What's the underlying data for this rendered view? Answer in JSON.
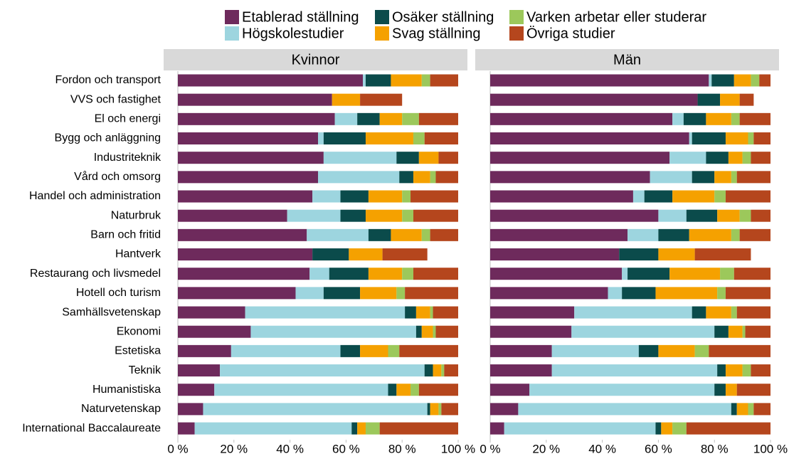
{
  "chart_data": [
    {
      "type": "stacked-barh",
      "title": "Kvinnor",
      "categories": [
        "Fordon och transport",
        "VVS och fastighet",
        "El och energi",
        "Bygg och anläggning",
        "Industriteknik",
        "Vård och omsorg",
        "Handel och administration",
        "Naturbruk",
        "Barn och fritid",
        "Hantverk",
        "Restaurang och livsmedel",
        "Hotell och turism",
        "Samhällsvetenskap",
        "Ekonomi",
        "Estetiska",
        "Teknik",
        "Humanistiska",
        "Naturvetenskap",
        "International Baccalaureate"
      ],
      "series": [
        {
          "name": "Etablerad ställning",
          "color": "#6e2a5c",
          "values": [
            66,
            55,
            56,
            50,
            52,
            50,
            48,
            39,
            46,
            48,
            47,
            42,
            24,
            26,
            19,
            15,
            13,
            9,
            6
          ]
        },
        {
          "name": "Högskolestudier",
          "color": "#9dd5df",
          "values": [
            1,
            0,
            8,
            2,
            26,
            29,
            10,
            19,
            22,
            0,
            7,
            10,
            57,
            59,
            39,
            73,
            62,
            80,
            56
          ]
        },
        {
          "name": "Osäker ställning",
          "color": "#0b4b4b",
          "values": [
            9,
            0,
            8,
            15,
            8,
            5,
            10,
            9,
            8,
            13,
            14,
            13,
            4,
            2,
            7,
            3,
            3,
            1,
            2
          ]
        },
        {
          "name": "Svag ställning",
          "color": "#f5a100",
          "values": [
            11,
            10,
            8,
            17,
            7,
            6,
            12,
            13,
            11,
            12,
            12,
            13,
            5,
            4,
            10,
            3,
            5,
            3,
            3
          ]
        },
        {
          "name": "Varken arbetar eller studerar",
          "color": "#9cc85b",
          "values": [
            3,
            0,
            6,
            4,
            0,
            2,
            3,
            4,
            3,
            0,
            4,
            3,
            1,
            1,
            4,
            1,
            3,
            1,
            5
          ]
        },
        {
          "name": "Övriga studier",
          "color": "#b5461d",
          "values": [
            10,
            15,
            14,
            12,
            7,
            8,
            17,
            16,
            10,
            16,
            16,
            19,
            9,
            8,
            21,
            5,
            14,
            6,
            28
          ]
        }
      ],
      "xlim": [
        0,
        100
      ],
      "xticks": [
        {
          "value": 0,
          "label": "0 %"
        },
        {
          "value": 20,
          "label": "20 %"
        },
        {
          "value": 40,
          "label": "40 %"
        },
        {
          "value": 60,
          "label": "60 %"
        },
        {
          "value": 80,
          "label": "80 %"
        },
        {
          "value": 100,
          "label": "100 %"
        }
      ]
    },
    {
      "type": "stacked-barh",
      "title": "Män",
      "series": [
        {
          "values": [
            78,
            74,
            65,
            71,
            64,
            57,
            51,
            60,
            49,
            46,
            47,
            42,
            30,
            29,
            22,
            22,
            14,
            10,
            5
          ]
        },
        {
          "values": [
            1,
            0,
            4,
            1,
            13,
            15,
            4,
            10,
            11,
            0,
            2,
            5,
            42,
            51,
            31,
            59,
            66,
            76,
            54
          ]
        },
        {
          "values": [
            8,
            8,
            8,
            12,
            8,
            8,
            10,
            11,
            11,
            14,
            15,
            12,
            5,
            5,
            7,
            3,
            4,
            2,
            2
          ]
        },
        {
          "values": [
            6,
            7,
            9,
            8,
            5,
            6,
            15,
            8,
            15,
            13,
            18,
            22,
            9,
            5,
            13,
            6,
            4,
            4,
            4
          ]
        },
        {
          "values": [
            3,
            0,
            3,
            2,
            3,
            2,
            4,
            4,
            3,
            0,
            5,
            3,
            2,
            1,
            5,
            3,
            0,
            2,
            5
          ]
        },
        {
          "values": [
            4,
            5,
            11,
            6,
            7,
            12,
            16,
            7,
            11,
            20,
            13,
            16,
            12,
            9,
            22,
            7,
            12,
            6,
            30
          ]
        }
      ],
      "xlim": [
        0,
        100
      ],
      "xticks": [
        {
          "value": 0,
          "label": "0 %"
        },
        {
          "value": 20,
          "label": "20 %"
        },
        {
          "value": 40,
          "label": "40 %"
        },
        {
          "value": 60,
          "label": "60 %"
        },
        {
          "value": 80,
          "label": "80 %"
        },
        {
          "value": 100,
          "label": "100 %"
        }
      ]
    }
  ]
}
